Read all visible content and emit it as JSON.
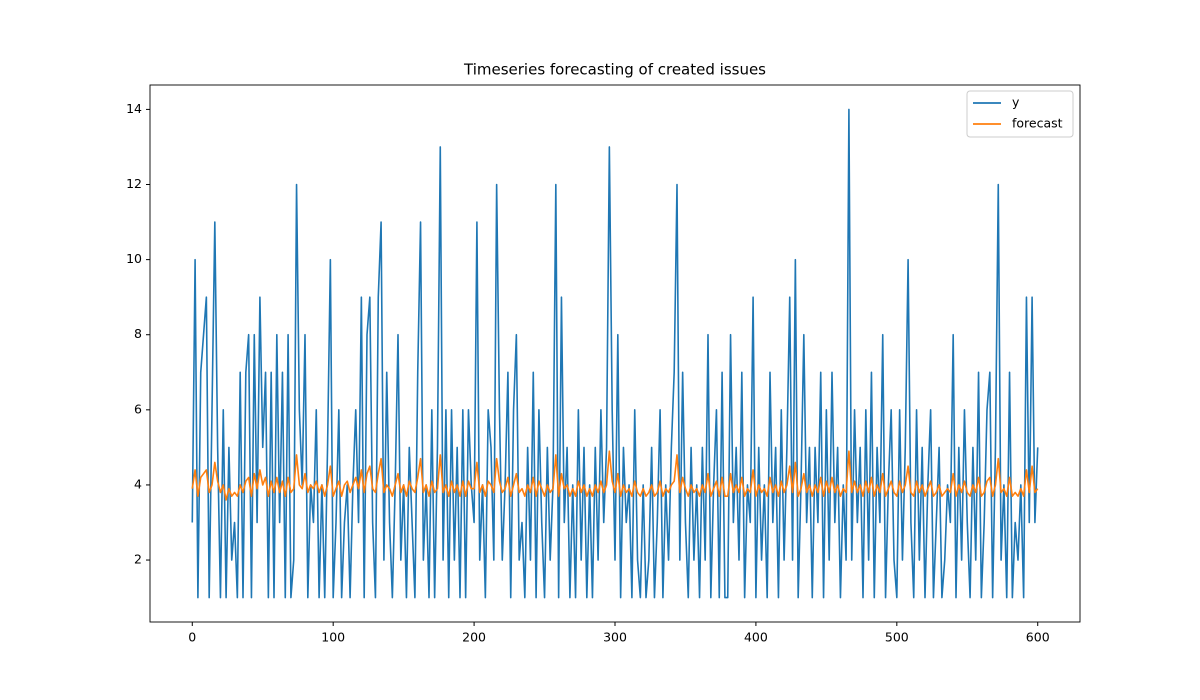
{
  "chart_data": {
    "type": "line",
    "title": "Timeseries forecasting of created issues",
    "x": [
      0,
      2,
      4,
      6,
      8,
      10,
      12,
      14,
      16,
      18,
      20,
      22,
      24,
      26,
      28,
      30,
      32,
      34,
      36,
      38,
      40,
      42,
      44,
      46,
      48,
      50,
      52,
      54,
      56,
      58,
      60,
      62,
      64,
      66,
      68,
      70,
      72,
      74,
      76,
      78,
      80,
      82,
      84,
      86,
      88,
      90,
      92,
      94,
      96,
      98,
      100,
      102,
      104,
      106,
      108,
      110,
      112,
      114,
      116,
      118,
      120,
      122,
      124,
      126,
      128,
      130,
      132,
      134,
      136,
      138,
      140,
      142,
      144,
      146,
      148,
      150,
      152,
      154,
      156,
      158,
      160,
      162,
      164,
      166,
      168,
      170,
      172,
      174,
      176,
      178,
      180,
      182,
      184,
      186,
      188,
      190,
      192,
      194,
      196,
      198,
      200,
      202,
      204,
      206,
      208,
      210,
      212,
      214,
      216,
      218,
      220,
      222,
      224,
      226,
      228,
      230,
      232,
      234,
      236,
      238,
      240,
      242,
      244,
      246,
      248,
      250,
      252,
      254,
      256,
      258,
      260,
      262,
      264,
      266,
      268,
      270,
      272,
      274,
      276,
      278,
      280,
      282,
      284,
      286,
      288,
      290,
      292,
      294,
      296,
      298,
      300,
      302,
      304,
      306,
      308,
      310,
      312,
      314,
      316,
      318,
      320,
      322,
      324,
      326,
      328,
      330,
      332,
      334,
      336,
      338,
      340,
      342,
      344,
      346,
      348,
      350,
      352,
      354,
      356,
      358,
      360,
      362,
      364,
      366,
      368,
      370,
      372,
      374,
      376,
      378,
      380,
      382,
      384,
      386,
      388,
      390,
      392,
      394,
      396,
      398,
      400,
      402,
      404,
      406,
      408,
      410,
      412,
      414,
      416,
      418,
      420,
      422,
      424,
      426,
      428,
      430,
      432,
      434,
      436,
      438,
      440,
      442,
      444,
      446,
      448,
      450,
      452,
      454,
      456,
      458,
      460,
      462,
      464,
      466,
      468,
      470,
      472,
      474,
      476,
      478,
      480,
      482,
      484,
      486,
      488,
      490,
      492,
      494,
      496,
      498,
      500,
      502,
      504,
      506,
      508,
      510,
      512,
      514,
      516,
      518,
      520,
      522,
      524,
      526,
      528,
      530,
      532,
      534,
      536,
      538,
      540,
      542,
      544,
      546,
      548,
      550,
      552,
      554,
      556,
      558,
      560,
      562,
      564,
      566,
      568,
      570,
      572,
      574,
      576,
      578,
      580,
      582,
      584,
      586,
      588,
      590,
      592,
      594,
      596,
      598,
      600
    ],
    "series": [
      {
        "name": "y",
        "color": "#1f77b4",
        "values": [
          3,
          10,
          1,
          7,
          8,
          9,
          1,
          6,
          11,
          5,
          1,
          6,
          1,
          5,
          2,
          3,
          1,
          7,
          1,
          7,
          8,
          1,
          8,
          3,
          9,
          5,
          7,
          1,
          7,
          1,
          8,
          3,
          7,
          1,
          8,
          1,
          2,
          12,
          6,
          4,
          8,
          1,
          4,
          3,
          6,
          1,
          4,
          1,
          5,
          10,
          1,
          3,
          6,
          1,
          3,
          4,
          1,
          4,
          6,
          3,
          9,
          1,
          8,
          9,
          3,
          1,
          9,
          11,
          2,
          7,
          3,
          1,
          4,
          8,
          2,
          4,
          1,
          5,
          3,
          1,
          7,
          11,
          2,
          4,
          1,
          6,
          1,
          5,
          13,
          2,
          6,
          1,
          6,
          2,
          5,
          1,
          6,
          1,
          6,
          4,
          3,
          11,
          2,
          4,
          1,
          6,
          5,
          2,
          12,
          6,
          2,
          4,
          7,
          1,
          6,
          8,
          2,
          3,
          1,
          5,
          2,
          7,
          1,
          6,
          3,
          1,
          5,
          2,
          4,
          12,
          1,
          9,
          3,
          5,
          1,
          4,
          1,
          6,
          2,
          5,
          1,
          4,
          1,
          5,
          2,
          6,
          3,
          5,
          13,
          6,
          2,
          8,
          1,
          5,
          3,
          4,
          1,
          6,
          2,
          1,
          4,
          1,
          2,
          5,
          1,
          3,
          6,
          1,
          4,
          2,
          5,
          7,
          12,
          2,
          7,
          3,
          1,
          5,
          2,
          4,
          1,
          5,
          2,
          8,
          1,
          4,
          6,
          1,
          7,
          1,
          1,
          8,
          3,
          5,
          2,
          7,
          1,
          4,
          3,
          9,
          1,
          5,
          2,
          4,
          1,
          7,
          3,
          5,
          1,
          6,
          2,
          5,
          9,
          2,
          10,
          1,
          4,
          8,
          3,
          5,
          1,
          5,
          3,
          7,
          1,
          6,
          2,
          7,
          3,
          5,
          1,
          4,
          2,
          14,
          2,
          6,
          3,
          5,
          1,
          6,
          2,
          7,
          1,
          5,
          3,
          8,
          1,
          4,
          6,
          2,
          1,
          6,
          2,
          5,
          10,
          3,
          1,
          6,
          2,
          5,
          1,
          4,
          6,
          1,
          3,
          5,
          1,
          2,
          4,
          3,
          8,
          1,
          5,
          2,
          6,
          3,
          1,
          5,
          2,
          7,
          1,
          3,
          6,
          7,
          1,
          5,
          12,
          2,
          4,
          1,
          7,
          1,
          3,
          2,
          4,
          1,
          9,
          3,
          9,
          3,
          5
        ]
      },
      {
        "name": "forecast",
        "color": "#ff7f0e",
        "values": [
          3.9,
          4.4,
          3.7,
          4.2,
          4.3,
          4.4,
          3.8,
          4.0,
          4.6,
          4.1,
          3.8,
          4.0,
          3.6,
          3.9,
          3.7,
          3.8,
          3.7,
          4.0,
          3.8,
          4.1,
          4.2,
          3.7,
          4.3,
          3.9,
          4.4,
          4.0,
          4.2,
          3.7,
          4.1,
          3.8,
          4.2,
          3.8,
          4.1,
          3.7,
          4.2,
          3.8,
          3.9,
          4.8,
          4.0,
          3.9,
          4.3,
          3.8,
          4.0,
          3.9,
          4.1,
          3.8,
          4.0,
          3.7,
          4.0,
          4.5,
          3.7,
          3.9,
          4.1,
          3.7,
          4.0,
          4.1,
          3.8,
          4.0,
          4.2,
          3.9,
          4.4,
          3.8,
          4.3,
          4.5,
          3.9,
          3.8,
          4.3,
          4.7,
          3.8,
          4.0,
          3.9,
          3.7,
          4.0,
          4.3,
          3.8,
          4.0,
          3.7,
          4.1,
          3.9,
          3.8,
          4.2,
          4.7,
          3.8,
          4.0,
          3.7,
          4.1,
          3.8,
          3.9,
          4.8,
          3.8,
          4.0,
          3.7,
          4.1,
          3.8,
          4.0,
          3.7,
          4.1,
          3.7,
          4.1,
          3.9,
          3.9,
          4.6,
          3.8,
          4.0,
          3.7,
          4.1,
          4.0,
          3.8,
          4.7,
          4.1,
          3.8,
          3.9,
          4.2,
          3.7,
          4.0,
          4.3,
          3.8,
          3.9,
          3.7,
          4.0,
          3.8,
          4.2,
          3.7,
          4.1,
          3.9,
          3.7,
          4.0,
          3.8,
          3.9,
          4.8,
          3.7,
          4.3,
          3.9,
          4.0,
          3.7,
          3.9,
          3.7,
          4.1,
          3.8,
          4.0,
          3.7,
          3.9,
          3.7,
          4.0,
          3.8,
          4.1,
          3.8,
          4.0,
          4.9,
          4.1,
          3.8,
          4.3,
          3.7,
          4.0,
          3.8,
          3.9,
          3.7,
          4.1,
          3.8,
          3.7,
          3.9,
          3.7,
          3.8,
          4.0,
          3.7,
          3.8,
          4.1,
          3.7,
          3.9,
          3.8,
          4.0,
          4.1,
          4.8,
          3.8,
          4.2,
          3.9,
          3.7,
          4.0,
          3.8,
          3.9,
          3.7,
          4.0,
          3.8,
          4.3,
          3.7,
          3.9,
          4.1,
          3.7,
          4.2,
          3.7,
          3.7,
          4.3,
          3.8,
          4.0,
          3.8,
          4.2,
          3.7,
          3.9,
          3.8,
          4.4,
          3.7,
          4.0,
          3.8,
          3.9,
          3.7,
          4.2,
          3.8,
          4.0,
          3.7,
          4.1,
          3.8,
          4.0,
          4.5,
          3.8,
          4.6,
          3.7,
          3.9,
          4.3,
          3.8,
          4.0,
          3.7,
          4.0,
          3.8,
          4.2,
          3.7,
          4.1,
          3.8,
          4.2,
          3.8,
          4.0,
          3.7,
          3.9,
          3.8,
          4.9,
          3.8,
          4.1,
          3.8,
          4.0,
          3.7,
          4.1,
          3.8,
          4.2,
          3.7,
          4.0,
          3.8,
          4.3,
          3.7,
          3.9,
          4.1,
          3.8,
          3.7,
          4.1,
          3.8,
          4.0,
          4.5,
          3.8,
          3.7,
          4.1,
          3.8,
          4.0,
          3.7,
          3.9,
          4.1,
          3.7,
          3.8,
          4.0,
          3.7,
          3.8,
          3.9,
          3.8,
          4.3,
          3.7,
          4.0,
          3.8,
          4.1,
          3.8,
          3.7,
          4.0,
          3.8,
          4.2,
          3.7,
          3.8,
          4.1,
          4.2,
          3.7,
          4.0,
          4.7,
          3.8,
          3.9,
          3.7,
          4.2,
          3.7,
          3.8,
          3.7,
          3.9,
          3.7,
          4.4,
          3.8,
          4.5,
          3.8,
          3.9
        ]
      }
    ],
    "xlim": [
      -30,
      630
    ],
    "ylim": [
      0.35,
      14.65
    ],
    "xticks": [
      0,
      100,
      200,
      300,
      400,
      500,
      600
    ],
    "yticks": [
      2,
      4,
      6,
      8,
      10,
      12,
      14
    ],
    "legend": "upper right"
  }
}
